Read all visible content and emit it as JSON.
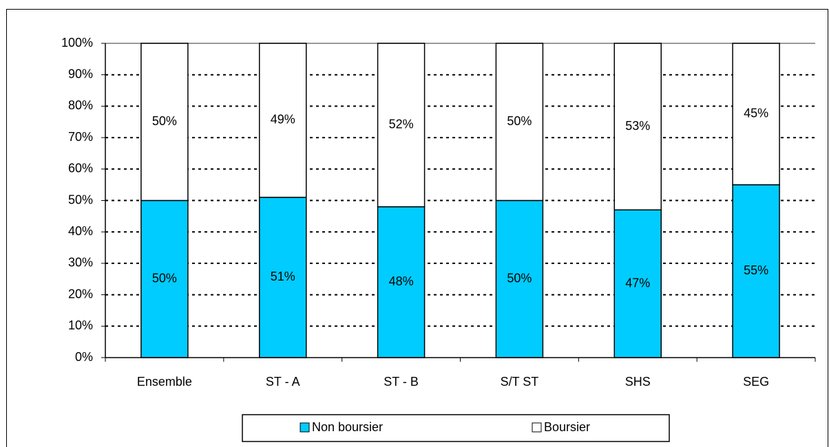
{
  "chart_data": {
    "type": "bar",
    "stacked": true,
    "categories": [
      "Ensemble",
      "ST - A",
      "ST - B",
      "S/T ST",
      "SHS",
      "SEG"
    ],
    "series": [
      {
        "name": "Non boursier",
        "color": "#00ccff",
        "values": [
          50,
          51,
          48,
          50,
          47,
          55
        ],
        "value_labels": [
          "50%",
          "51%",
          "48%",
          "50%",
          "47%",
          "55%"
        ]
      },
      {
        "name": "Boursier",
        "color": "#ffffff",
        "values": [
          50,
          49,
          52,
          50,
          53,
          45
        ],
        "value_labels": [
          "50%",
          "49%",
          "52%",
          "50%",
          "53%",
          "45%"
        ]
      }
    ],
    "ylim": [
      0,
      100
    ],
    "yticks": [
      {
        "value": 0,
        "label": "0%"
      },
      {
        "value": 10,
        "label": "10%"
      },
      {
        "value": 20,
        "label": "20%"
      },
      {
        "value": 30,
        "label": "30%"
      },
      {
        "value": 40,
        "label": "40%"
      },
      {
        "value": 50,
        "label": "50%"
      },
      {
        "value": 60,
        "label": "60%"
      },
      {
        "value": 70,
        "label": "70%"
      },
      {
        "value": 80,
        "label": "80%"
      },
      {
        "value": 90,
        "label": "90%"
      },
      {
        "value": 100,
        "label": "100%"
      }
    ],
    "grid": true,
    "legend": "bottom"
  }
}
